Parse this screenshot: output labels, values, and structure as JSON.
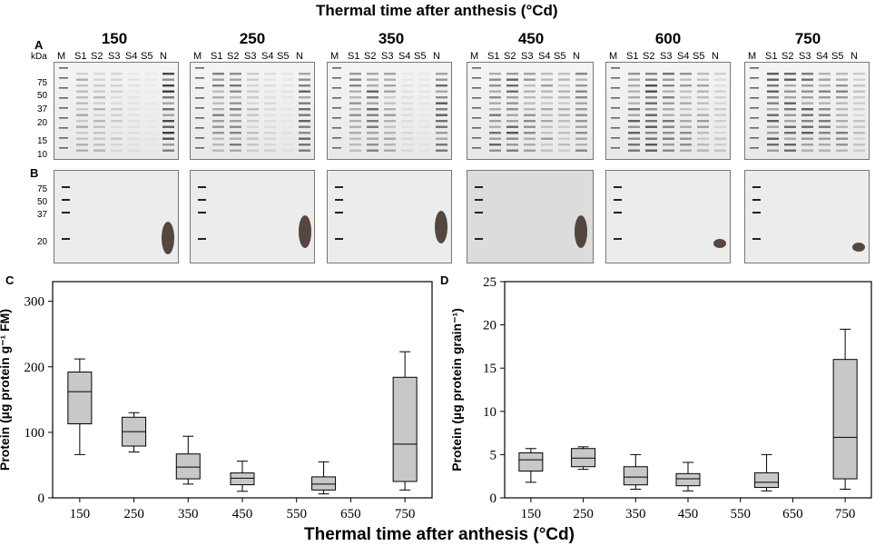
{
  "figure_title": "Thermal time after anthesis (°Cd)",
  "panel_labels": [
    "A",
    "B",
    "C",
    "D"
  ],
  "kda_label": "kDa",
  "marker_kda": [
    "75",
    "50",
    "37",
    "20",
    "15",
    "10"
  ],
  "marker_kda_b": [
    "75",
    "50",
    "37",
    "20"
  ],
  "time_points": [
    "150",
    "250",
    "350",
    "450",
    "600",
    "750"
  ],
  "lanes": [
    "M",
    "S1",
    "S2",
    "S3",
    "S4",
    "S5",
    "N"
  ],
  "chart_data": [
    {
      "type": "box",
      "panel": "C",
      "ylabel": "Protein (µg protein g⁻¹ FM)",
      "xlabel": "Thermal time after anthesis (°Cd)",
      "xticks": [
        150,
        250,
        350,
        450,
        550,
        650,
        750
      ],
      "yticks": [
        0,
        100,
        200,
        300
      ],
      "ylim": [
        0,
        330
      ],
      "boxes": [
        {
          "x": 150,
          "min": 66,
          "q1": 113,
          "median": 162,
          "q3": 192,
          "max": 212
        },
        {
          "x": 250,
          "min": 70,
          "q1": 79,
          "median": 101,
          "q3": 123,
          "max": 130
        },
        {
          "x": 350,
          "min": 21,
          "q1": 29,
          "median": 47,
          "q3": 67,
          "max": 94
        },
        {
          "x": 450,
          "min": 10,
          "q1": 20,
          "median": 30,
          "q3": 38,
          "max": 56
        },
        {
          "x": 600,
          "min": 6,
          "q1": 12,
          "median": 21,
          "q3": 32,
          "max": 55
        },
        {
          "x": 750,
          "min": 12,
          "q1": 25,
          "median": 82,
          "q3": 184,
          "max": 223
        }
      ]
    },
    {
      "type": "box",
      "panel": "D",
      "ylabel": "Protein (µg protein grain⁻¹)",
      "xlabel": "",
      "xticks": [
        150,
        250,
        350,
        450,
        550,
        650,
        750
      ],
      "yticks": [
        0,
        5,
        10,
        15,
        20,
        25
      ],
      "ylim": [
        0,
        25
      ],
      "boxes": [
        {
          "x": 150,
          "min": 1.8,
          "q1": 3.1,
          "median": 4.4,
          "q3": 5.2,
          "max": 5.7
        },
        {
          "x": 250,
          "min": 3.3,
          "q1": 3.6,
          "median": 4.6,
          "q3": 5.7,
          "max": 5.9
        },
        {
          "x": 350,
          "min": 1.0,
          "q1": 1.5,
          "median": 2.4,
          "q3": 3.6,
          "max": 5.0
        },
        {
          "x": 450,
          "min": 0.8,
          "q1": 1.4,
          "median": 2.2,
          "q3": 2.8,
          "max": 4.1
        },
        {
          "x": 600,
          "min": 0.8,
          "q1": 1.2,
          "median": 1.8,
          "q3": 2.9,
          "max": 5.0
        },
        {
          "x": 750,
          "min": 1.0,
          "q1": 2.2,
          "median": 7.0,
          "q3": 16.0,
          "max": 19.5
        }
      ]
    }
  ]
}
